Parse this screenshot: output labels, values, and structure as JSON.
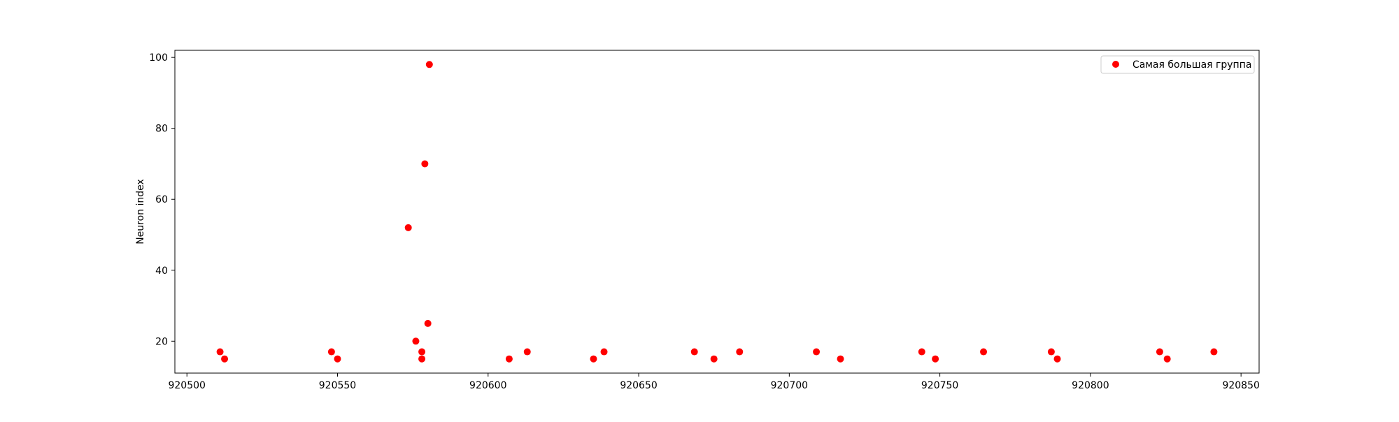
{
  "chart_data": {
    "type": "scatter",
    "title": "",
    "xlabel": "",
    "ylabel": "Neuron index",
    "xlim": [
      920496,
      920856
    ],
    "ylim": [
      11,
      102
    ],
    "xticks": [
      920500,
      920550,
      920600,
      920650,
      920700,
      920750,
      920800,
      920850
    ],
    "yticks": [
      20,
      40,
      60,
      80,
      100
    ],
    "grid": false,
    "legend_position": "top-right",
    "series": [
      {
        "name": "Самая большая группа",
        "color": "#ff0000",
        "marker": "circle",
        "points": [
          {
            "x": 920511,
            "y": 17
          },
          {
            "x": 920512.5,
            "y": 15
          },
          {
            "x": 920548,
            "y": 17
          },
          {
            "x": 920550,
            "y": 15
          },
          {
            "x": 920573.5,
            "y": 52
          },
          {
            "x": 920576,
            "y": 20
          },
          {
            "x": 920578,
            "y": 17
          },
          {
            "x": 920578,
            "y": 15
          },
          {
            "x": 920579,
            "y": 70
          },
          {
            "x": 920580,
            "y": 25
          },
          {
            "x": 920580.5,
            "y": 98
          },
          {
            "x": 920607,
            "y": 15
          },
          {
            "x": 920613,
            "y": 17
          },
          {
            "x": 920635,
            "y": 15
          },
          {
            "x": 920638.5,
            "y": 17
          },
          {
            "x": 920668.5,
            "y": 17
          },
          {
            "x": 920675,
            "y": 15
          },
          {
            "x": 920683.5,
            "y": 17
          },
          {
            "x": 920709,
            "y": 17
          },
          {
            "x": 920717,
            "y": 15
          },
          {
            "x": 920744,
            "y": 17
          },
          {
            "x": 920748.5,
            "y": 15
          },
          {
            "x": 920764.5,
            "y": 17
          },
          {
            "x": 920787,
            "y": 17
          },
          {
            "x": 920789,
            "y": 15
          },
          {
            "x": 920823,
            "y": 17
          },
          {
            "x": 920825.5,
            "y": 15
          },
          {
            "x": 920841,
            "y": 17
          }
        ]
      }
    ]
  }
}
